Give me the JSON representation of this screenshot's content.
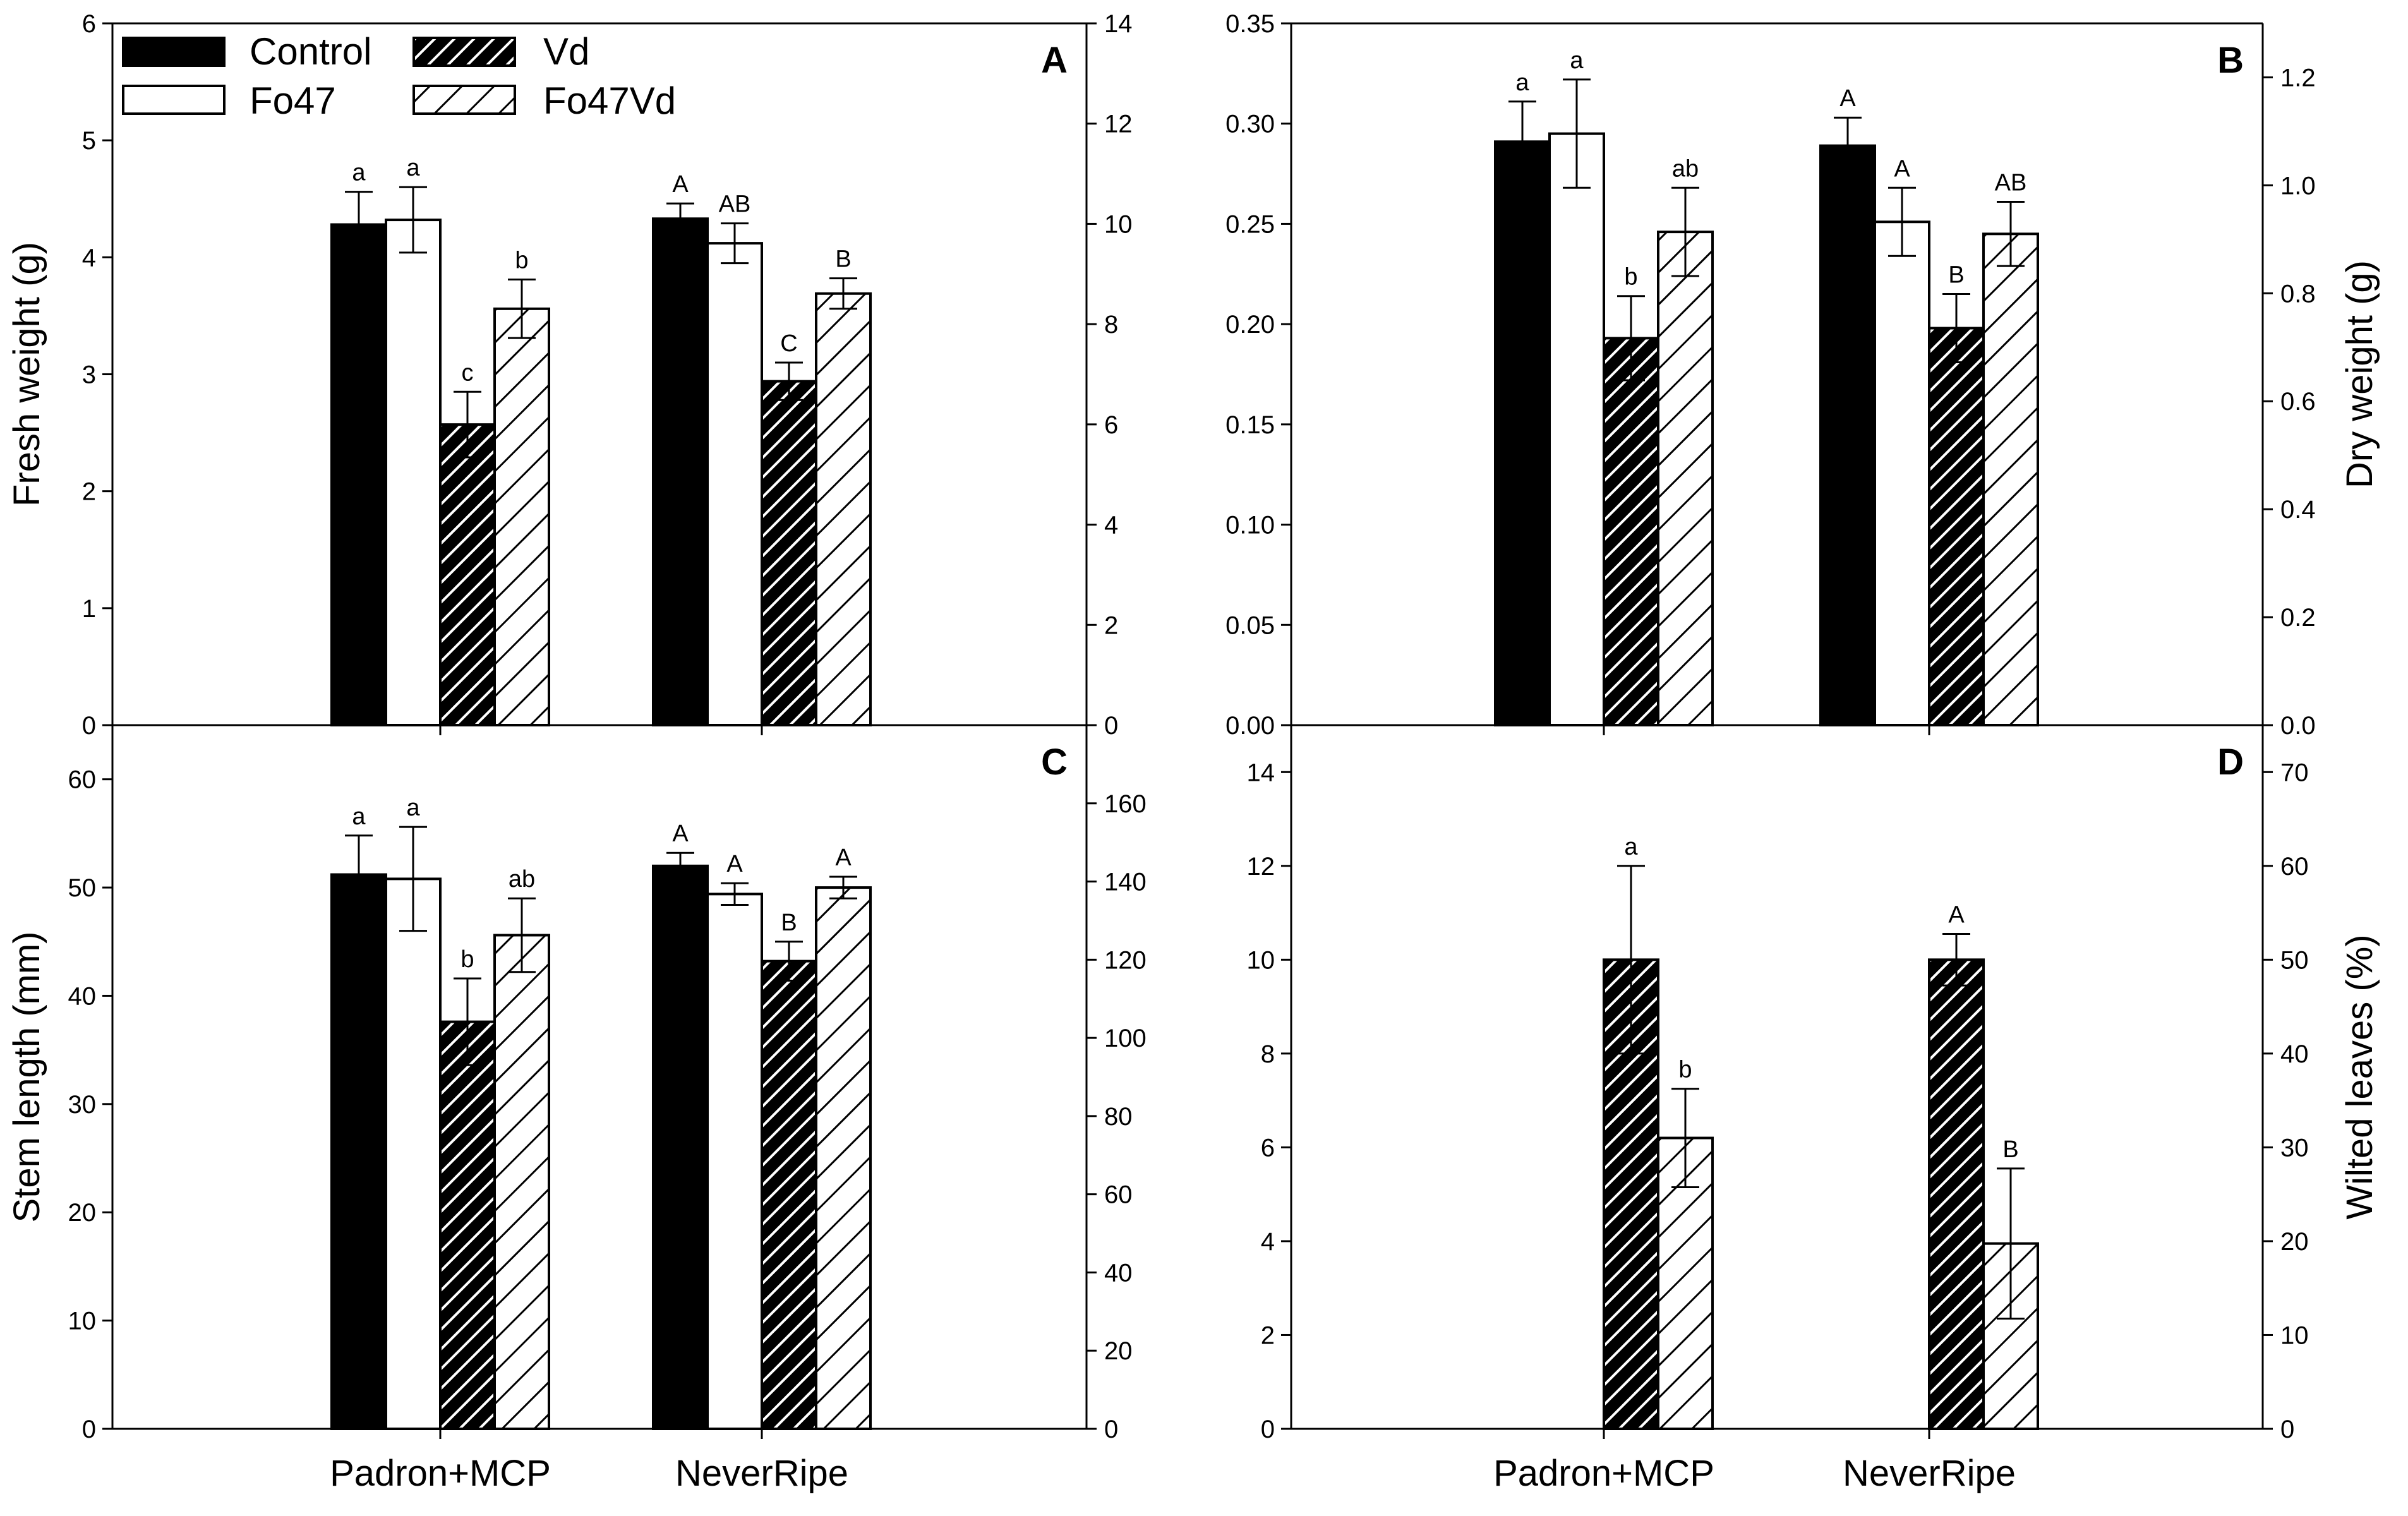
{
  "legend": {
    "entries": [
      {
        "label": "Control",
        "fill": "solid"
      },
      {
        "label": "Vd",
        "fill": "dense-hatch"
      },
      {
        "label": "Fo47",
        "fill": "empty"
      },
      {
        "label": "Fo47Vd",
        "fill": "sparse-hatch"
      }
    ]
  },
  "colors": {
    "bar_solid": "#000000",
    "bar_empty": "#ffffff",
    "axis": "#000000"
  },
  "chart_data": [
    {
      "panel": "A",
      "type": "bar",
      "categories": [
        "Padron+MCP",
        "NeverRipe"
      ],
      "series": [
        {
          "name": "Control",
          "values": [
            4.28,
            4.33
          ],
          "errors": [
            0.28,
            0.13
          ],
          "labels": [
            "a",
            "A"
          ]
        },
        {
          "name": "Fo47",
          "values": [
            4.32,
            4.12
          ],
          "errors": [
            0.28,
            0.17
          ],
          "labels": [
            "a",
            "AB"
          ]
        },
        {
          "name": "Vd",
          "values": [
            2.57,
            2.94
          ],
          "errors": [
            0.28,
            0.16
          ],
          "labels": [
            "c",
            "C"
          ]
        },
        {
          "name": "Fo47Vd",
          "values": [
            3.56,
            3.69
          ],
          "errors": [
            0.25,
            0.13
          ],
          "labels": [
            "b",
            "B"
          ]
        }
      ],
      "title": "",
      "xlabel": "",
      "ylabel": "Fresh weight (g)",
      "ylim": [
        0,
        6
      ],
      "yticks": [
        "0",
        "1",
        "2",
        "3",
        "4",
        "5",
        "6"
      ],
      "y2lim": [
        0,
        14
      ],
      "y2ticks": [
        "0",
        "2",
        "4",
        "6",
        "8",
        "10",
        "12",
        "14"
      ],
      "y2label": ""
    },
    {
      "panel": "B",
      "type": "bar",
      "categories": [
        "Padron+MCP",
        "NeverRipe"
      ],
      "series": [
        {
          "name": "Control",
          "values": [
            0.291,
            0.289
          ],
          "errors": [
            0.02,
            0.014
          ],
          "labels": [
            "a",
            "A"
          ]
        },
        {
          "name": "Fo47",
          "values": [
            0.295,
            0.251
          ],
          "errors": [
            0.027,
            0.017
          ],
          "labels": [
            "a",
            "A"
          ]
        },
        {
          "name": "Vd",
          "values": [
            0.193,
            0.198
          ],
          "errors": [
            0.021,
            0.017
          ],
          "labels": [
            "b",
            "B"
          ]
        },
        {
          "name": "Fo47Vd",
          "values": [
            0.246,
            0.245
          ],
          "errors": [
            0.022,
            0.016
          ],
          "labels": [
            "ab",
            "AB"
          ]
        }
      ],
      "title": "",
      "xlabel": "",
      "ylabel": "",
      "ylim": [
        0,
        0.35
      ],
      "yticks": [
        "0.00",
        "0.05",
        "0.10",
        "0.15",
        "0.20",
        "0.25",
        "0.30",
        "0.35"
      ],
      "y2lim": [
        0,
        1.3
      ],
      "y2ticks": [
        "0.0",
        "0.2",
        "0.4",
        "0.6",
        "0.8",
        "1.0",
        "1.2"
      ],
      "y2label": "Dry weight (g)"
    },
    {
      "panel": "C",
      "type": "bar",
      "categories": [
        "Padron+MCP",
        "NeverRipe"
      ],
      "series": [
        {
          "name": "Control",
          "values": [
            51.2,
            52.0
          ],
          "errors": [
            3.6,
            1.2
          ],
          "labels": [
            "a",
            "A"
          ]
        },
        {
          "name": "Fo47",
          "values": [
            50.8,
            49.4
          ],
          "errors": [
            4.8,
            1.0
          ],
          "labels": [
            "a",
            "A"
          ]
        },
        {
          "name": "Vd",
          "values": [
            37.6,
            43.2
          ],
          "errors": [
            4.0,
            1.8
          ],
          "labels": [
            "b",
            "B"
          ]
        },
        {
          "name": "Fo47Vd",
          "values": [
            45.6,
            50.0
          ],
          "errors": [
            3.4,
            1.0
          ],
          "labels": [
            "ab",
            "A"
          ]
        }
      ],
      "title": "",
      "xlabel": "",
      "ylabel": "Stem length (mm)",
      "ylim": [
        0,
        65
      ],
      "yticks": [
        "0",
        "10",
        "20",
        "30",
        "40",
        "50",
        "60"
      ],
      "y2lim": [
        0,
        180
      ],
      "y2ticks": [
        "0",
        "20",
        "40",
        "60",
        "80",
        "100",
        "120",
        "140",
        "160"
      ],
      "y2label": ""
    },
    {
      "panel": "D",
      "type": "bar",
      "categories": [
        "Padron+MCP",
        "NeverRipe"
      ],
      "series": [
        {
          "name": "Control",
          "values": [
            0,
            0
          ],
          "errors": [
            0,
            0
          ],
          "labels": [
            "",
            ""
          ]
        },
        {
          "name": "Fo47",
          "values": [
            0,
            0
          ],
          "errors": [
            0,
            0
          ],
          "labels": [
            "",
            ""
          ]
        },
        {
          "name": "Vd",
          "values": [
            10.0,
            10.0
          ],
          "errors": [
            2.0,
            0.55
          ],
          "labels": [
            "a",
            "A"
          ]
        },
        {
          "name": "Fo47Vd",
          "values": [
            6.2,
            3.95
          ],
          "errors": [
            1.05,
            1.6
          ],
          "labels": [
            "b",
            "B"
          ]
        }
      ],
      "title": "",
      "xlabel": "",
      "ylabel": "",
      "ylim": [
        0,
        15
      ],
      "yticks": [
        "0",
        "2",
        "4",
        "6",
        "8",
        "10",
        "12",
        "14"
      ],
      "y2lim": [
        0,
        75
      ],
      "y2ticks": [
        "0",
        "10",
        "20",
        "30",
        "40",
        "50",
        "60",
        "70"
      ],
      "y2label": "Wilted leaves (%)"
    }
  ]
}
